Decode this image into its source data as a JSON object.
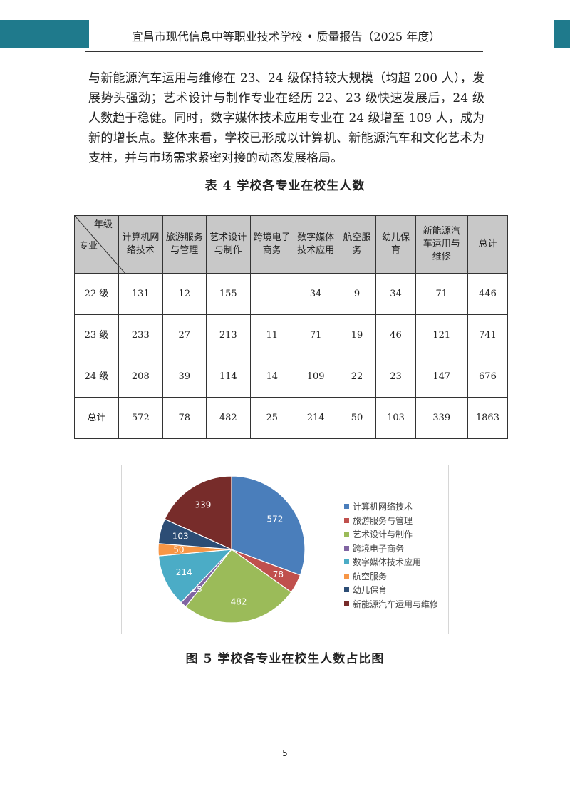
{
  "header": {
    "title": "宜昌市现代信息中等职业技术学校 • 质量报告（2025 年度）",
    "accent": "#1f7a8c"
  },
  "paragraph": [
    "与新能源汽车运用与维修在 23、24 级保持较大规模（均超 200 人），发展势头强劲；艺术设计与制作专业在经历 22、23 级快速发展后，24 级人数趋于稳健。同时，数字媒体技术应用专业在 24 级增至 109 人，成为新的增长点。整体来看，学校已形成以计算机、新能源汽车和文化艺术为支柱，并与市场需求紧密对接的动态发展格局。"
  ],
  "table": {
    "caption": "表 4  学校各专业在校生人数",
    "corner_top": "年级",
    "corner_bottom": "专业",
    "columns": [
      "计算机网络技术",
      "旅游服务与管理",
      "艺术设计与制作",
      "跨境电子商务",
      "数字媒体技术应用",
      "航空服务",
      "幼儿保育",
      "新能源汽车运用与维修",
      "总计"
    ],
    "rows": [
      {
        "label": "22 级",
        "values": [
          "131",
          "12",
          "155",
          "",
          "34",
          "9",
          "34",
          "71",
          "446"
        ]
      },
      {
        "label": "23 级",
        "values": [
          "233",
          "27",
          "213",
          "11",
          "71",
          "19",
          "46",
          "121",
          "741"
        ]
      },
      {
        "label": "24 级",
        "values": [
          "208",
          "39",
          "114",
          "14",
          "109",
          "22",
          "23",
          "147",
          "676"
        ]
      },
      {
        "label": "总计",
        "values": [
          "572",
          "78",
          "482",
          "25",
          "214",
          "50",
          "103",
          "339",
          "1863"
        ]
      }
    ]
  },
  "chart_data": {
    "type": "pie",
    "categories": [
      "计算机网络技术",
      "旅游服务与管理",
      "艺术设计与制作",
      "跨境电子商务",
      "数字媒体技术应用",
      "航空服务",
      "幼儿保育",
      "新能源汽车运用与维修"
    ],
    "values": [
      572,
      78,
      482,
      25,
      214,
      50,
      103,
      339
    ],
    "colors": [
      "#4a7ebb",
      "#c0504d",
      "#9bbb59",
      "#8064a2",
      "#4bacc6",
      "#f79646",
      "#2c4d75",
      "#772c2a"
    ],
    "legend": "right",
    "data_labels": true
  },
  "figure_caption": "图 5  学校各专业在校生人数占比图",
  "page_number": "5"
}
